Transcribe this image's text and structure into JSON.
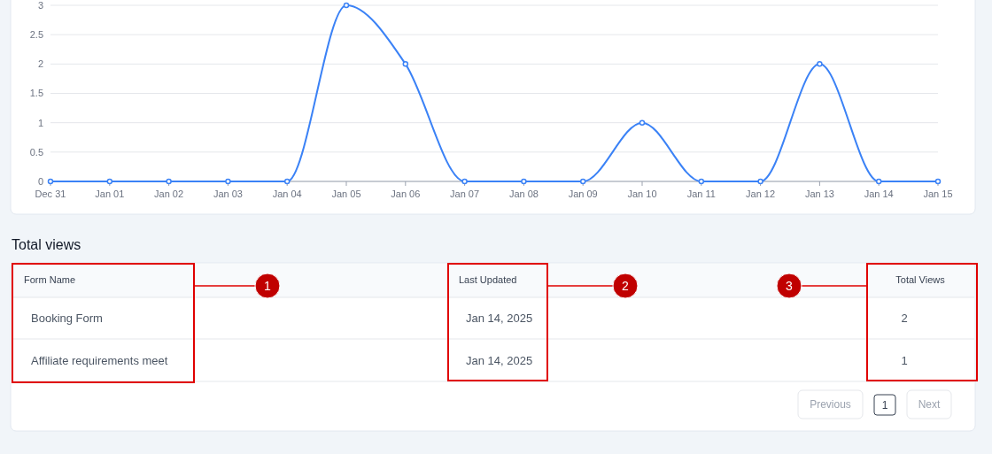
{
  "chart_data": [
    {
      "type": "line",
      "categories": [
        "Dec 31",
        "Jan 01",
        "Jan 02",
        "Jan 03",
        "Jan 04",
        "Jan 05",
        "Jan 06",
        "Jan 07",
        "Jan 08",
        "Jan 09",
        "Jan 10",
        "Jan 11",
        "Jan 12",
        "Jan 13",
        "Jan 14",
        "Jan 15"
      ],
      "series": [
        {
          "color": "#3b82f6",
          "values": [
            0,
            0,
            0,
            0,
            0,
            3,
            2,
            0,
            0,
            0,
            1,
            0,
            0,
            2,
            0,
            0
          ]
        }
      ],
      "ylim": [
        0,
        3
      ],
      "yticks": [
        0,
        0.5,
        1,
        1.5,
        2,
        2.5,
        3
      ],
      "grid": "y",
      "marker": "circle",
      "line_style": "solid"
    },
    {
      "type": "other",
      "title": "Total views",
      "annotations": [
        "Form Name",
        "Last Updated",
        "Total Views",
        "Booking Form",
        "Jan 14, 2025",
        "2",
        "Affiliate requirements meet",
        "Jan 14, 2025",
        "1",
        "Previous",
        "1",
        "Next",
        "1",
        "2",
        "3"
      ]
    }
  ]
}
